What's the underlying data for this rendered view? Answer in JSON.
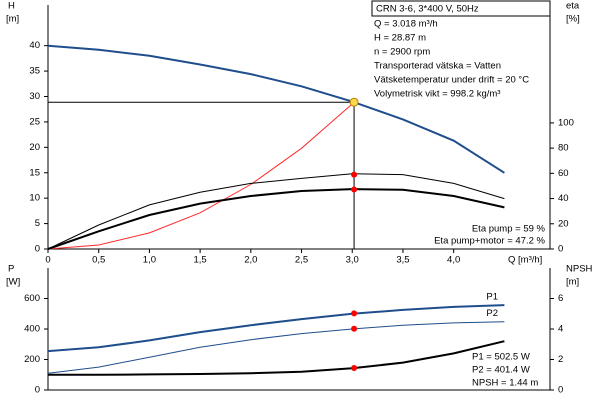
{
  "chart_data": [
    {
      "type": "line",
      "x": [
        0,
        0.5,
        1,
        1.5,
        2,
        2.5,
        3,
        3.5,
        4,
        4.5
      ],
      "xlim": [
        0,
        4.95
      ],
      "xticks": [
        0,
        {
          "value": 0.5,
          "label": "0,5"
        },
        {
          "value": 1,
          "label": "1,0"
        },
        {
          "value": 1.5,
          "label": "1,5"
        },
        {
          "value": 2,
          "label": "2,0"
        },
        {
          "value": 2.5,
          "label": "2,5"
        },
        {
          "value": 3,
          "label": "3,0"
        },
        {
          "value": 3.5,
          "label": "3,5"
        },
        {
          "value": 4,
          "label": "4,0"
        }
      ],
      "xlabel": "Q [m³/h]",
      "ylabel": "H",
      "yunit": "[m]",
      "y2label": "eta",
      "y2unit": "[%]",
      "ylim": [
        0,
        48
      ],
      "yticks": [
        0,
        5,
        10,
        15,
        20,
        25,
        30,
        35,
        40
      ],
      "y2lim": [
        0,
        193.5
      ],
      "y2ticks": [
        0,
        20,
        40,
        60,
        80,
        100
      ],
      "series": [
        {
          "color": "#1f4e8c",
          "linewidth": 2,
          "values": [
            40,
            39.2,
            38,
            36.3,
            34.4,
            32,
            29,
            25.5,
            21.3,
            15
          ]
        },
        {
          "color": "#ff2a2a",
          "linewidth": 1,
          "values": [
            0,
            0.79,
            3.17,
            7.13,
            12.68,
            19.81,
            28.53,
            null,
            null,
            null
          ]
        },
        {
          "color": "#000000",
          "linewidth": 1,
          "axis": "y2",
          "values": [
            0,
            19,
            35,
            45,
            52,
            56,
            59.7,
            59,
            52,
            40
          ]
        },
        {
          "color": "#000000",
          "linewidth": 2,
          "axis": "y2",
          "values": [
            0,
            14,
            27,
            36,
            42,
            46,
            47.5,
            47,
            42,
            33
          ]
        }
      ],
      "duty_point": {
        "x": 3.018,
        "y": 28.87,
        "color": "#ffd84a"
      },
      "y2_points": {
        "values": [
          59,
          47.2
        ],
        "color": "#ff0000"
      },
      "info_title": "CRN 3-6, 3*400 V, 50Hz",
      "info_lines": [
        "Q = 3.018 m³/h",
        "H = 28.87 m",
        "n = 2900 rpm",
        "Transporterad vätska = Vatten",
        "Vätsketemperatur under drift = 20 °C",
        "Volymetrisk vikt = 998.2 kg/m³"
      ],
      "notes": [
        "Eta pump = 59 %",
        "Eta pump+motor = 47.2 %"
      ]
    },
    {
      "type": "line",
      "x": [
        0,
        0.5,
        1,
        1.5,
        2,
        2.5,
        3,
        3.5,
        4,
        4.5
      ],
      "xlim": [
        0,
        4.95
      ],
      "ylabel": "P",
      "yunit": "[W]",
      "y2label": "NPSH",
      "y2unit": "[m]",
      "ylim": [
        0,
        800
      ],
      "yticks": [
        0,
        200,
        400,
        600
      ],
      "y2lim": [
        0,
        8
      ],
      "y2ticks": [
        0,
        2,
        4,
        6
      ],
      "series": [
        {
          "name": "P1",
          "color": "#1f4e8c",
          "linewidth": 2,
          "values": [
            255,
            280,
            325,
            380,
            425,
            465,
            500,
            525,
            545,
            557
          ]
        },
        {
          "name": "P2",
          "color": "#1f4e8c",
          "linewidth": 1,
          "values": [
            110,
            150,
            215,
            280,
            330,
            370,
            400,
            425,
            440,
            448
          ]
        },
        {
          "color": "#000000",
          "linewidth": 2,
          "axis": "y2",
          "values": [
            1.0,
            1.0,
            1.02,
            1.05,
            1.1,
            1.2,
            1.42,
            1.8,
            2.4,
            3.2
          ]
        }
      ],
      "duty_x": 3.018,
      "points": [
        {
          "value": 502.5,
          "axis": "y",
          "color": "#ff0000"
        },
        {
          "value": 401.4,
          "axis": "y",
          "color": "#ff0000"
        },
        {
          "value": 1.44,
          "axis": "y2",
          "color": "#ff0000"
        }
      ],
      "notes": [
        "P1 = 502.5 W",
        "P2 = 401.4 W",
        "NPSH = 1.44 m"
      ]
    }
  ]
}
